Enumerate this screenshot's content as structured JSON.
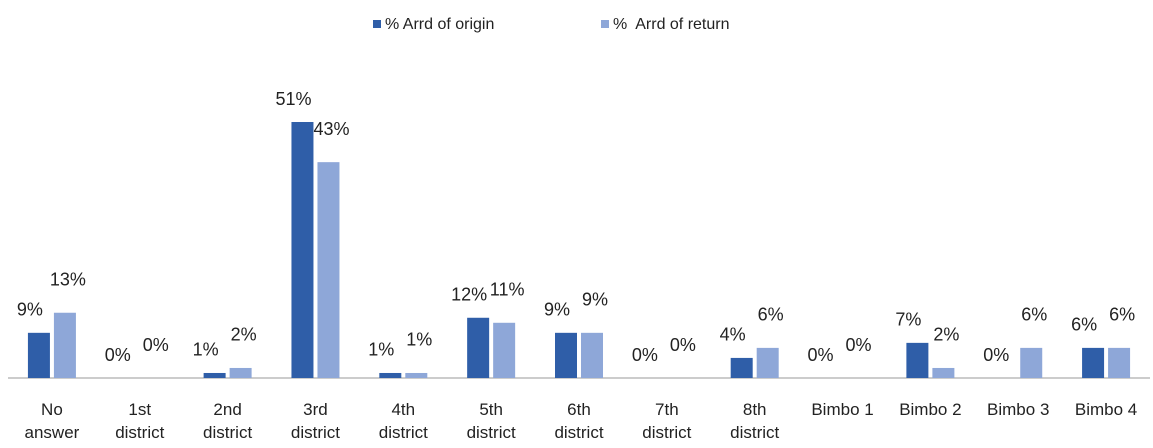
{
  "chart_data": {
    "type": "bar",
    "categories": [
      "No answer",
      "1st district",
      "2nd district",
      "3rd district",
      "4th district",
      "5th district",
      "6th district",
      "7th district",
      "8th district",
      "Bimbo 1",
      "Bimbo 2",
      "Bimbo 3",
      "Bimbo 4"
    ],
    "series": [
      {
        "name": "% Arrd of origin",
        "color": "#2f5ea8",
        "values": [
          9,
          0,
          1,
          51,
          1,
          12,
          9,
          0,
          4,
          0,
          7,
          0,
          6
        ],
        "value_labels": [
          "9%",
          "0%",
          "1%",
          "51%",
          "1%",
          "12%",
          "9%",
          "0%",
          "4%",
          "0%",
          "7%",
          "0%",
          "6%"
        ]
      },
      {
        "name": "%  Arrd of return",
        "color": "#8ea7d8",
        "values": [
          13,
          0,
          2,
          43,
          1,
          11,
          9,
          0,
          6,
          0,
          2,
          6,
          6
        ],
        "value_labels": [
          "13%",
          "0%",
          "2%",
          "43%",
          "1%",
          "11%",
          "9%",
          "0%",
          "6%",
          "0%",
          "2%",
          "6%",
          "6%"
        ]
      }
    ],
    "legend": "top"
  }
}
